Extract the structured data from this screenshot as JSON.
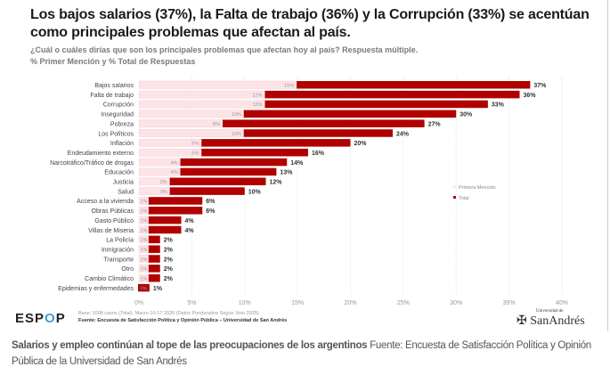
{
  "title": "Los bajos salarios (37%), la Falta de trabajo (36%) y la Corrupción (33%) se acentúan como principales problemas que afectan al país.",
  "subtitle1": "¿Cuál o cuáles dirías que son los principales problemas que afectan hoy al país? Respuesta múltiple.",
  "subtitle2": "% Primer Mención y % Total de Respuestas",
  "footer": {
    "logo": "ESPOP",
    "base": "Base: 1008 casos (Total). Marzo 10-17 2026 (Datos Ponderados Según Voto 2025)",
    "source": "Fuente: Encuesta de Satisfacción Política y Opinión Pública – Universidad de San Andrés",
    "university_logo": "Universidad de San Andrés"
  },
  "caption": {
    "bold": "Salarios y empleo continúan al tope de las preocupaciones de los argentinos",
    "text": "Fuente: Encuesta de Satisfacción Política y Opinión Pública de la Universidad de San Andrés"
  },
  "chart_data": {
    "type": "bar",
    "orientation": "horizontal",
    "categories": [
      "Bajos salarios",
      "Falta de trabajo",
      "Corrupción",
      "Inseguridad",
      "Pobreza",
      "Los Políticos",
      "Inflación",
      "Endeudamiento externo",
      "Narcotráfico/Tráfico de drogas",
      "Educación",
      "Justicia",
      "Salud",
      "Acceso a la vivienda",
      "Obras Públicas",
      "Gasto Público",
      "Villas de Miseria",
      "La Policía",
      "Inmigración",
      "Transporte",
      "Otro",
      "Cambio Climático",
      "Epidemias y enfermedades"
    ],
    "series": [
      {
        "name": "Primera Mención",
        "color": "#fde3e6",
        "values": [
          15,
          12,
          12,
          10,
          8,
          10,
          6,
          6,
          4,
          4,
          3,
          3,
          1,
          1,
          1,
          1,
          1,
          1,
          1,
          1,
          1,
          0
        ]
      },
      {
        "name": "Total",
        "color": "#b00000",
        "values": [
          37,
          36,
          33,
          30,
          27,
          24,
          20,
          16,
          14,
          13,
          12,
          10,
          6,
          6,
          4,
          4,
          2,
          2,
          2,
          2,
          2,
          1
        ]
      }
    ],
    "xlim": [
      0,
      40
    ],
    "xticks": [
      "0%",
      "5%",
      "10%",
      "15%",
      "20%",
      "25%",
      "30%",
      "35%",
      "40%"
    ],
    "grid": true,
    "legend": "right"
  }
}
